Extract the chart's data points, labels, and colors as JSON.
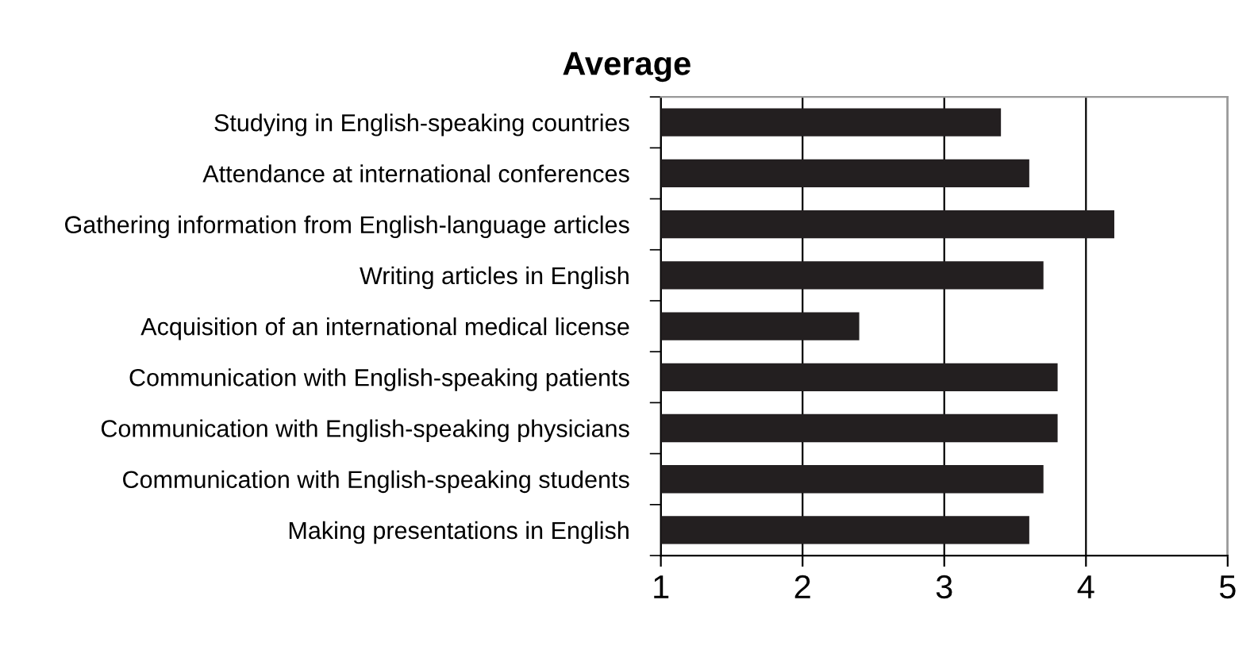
{
  "chart_data": {
    "type": "bar",
    "orientation": "horizontal",
    "title": "Average",
    "categories": [
      "Studying in English-speaking countries",
      "Attendance at international conferences",
      "Gathering information from English-language articles",
      "Writing articles in English",
      "Acquisition of an international medical license",
      "Communication with English-speaking patients",
      "Communication with English-speaking physicians",
      "Communication with English-speaking students",
      "Making presentations in English"
    ],
    "values": [
      3.4,
      3.6,
      4.2,
      3.7,
      2.4,
      3.8,
      3.8,
      3.7,
      3.6
    ],
    "color": "#231f20",
    "xlim": [
      1,
      5
    ],
    "xticks": [
      1,
      2,
      3,
      4,
      5
    ],
    "grid": "x"
  }
}
